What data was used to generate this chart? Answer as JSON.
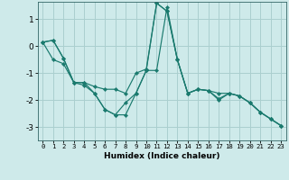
{
  "title": "",
  "xlabel": "Humidex (Indice chaleur)",
  "background_color": "#ceeaea",
  "grid_color": "#aacfcf",
  "line_color": "#1a7a6e",
  "x_ticks": [
    0,
    1,
    2,
    3,
    4,
    5,
    6,
    7,
    8,
    9,
    10,
    11,
    12,
    13,
    14,
    15,
    16,
    17,
    18,
    19,
    20,
    21,
    22,
    23
  ],
  "y_ticks": [
    -3,
    -2,
    -1,
    0,
    1
  ],
  "ylim": [
    -3.5,
    1.65
  ],
  "xlim": [
    -0.5,
    23.5
  ],
  "series": [
    [
      0.15,
      0.22,
      -0.45,
      -1.35,
      -1.35,
      -1.75,
      -2.35,
      -2.55,
      -2.55,
      -1.75,
      -0.9,
      -0.9,
      1.45,
      -0.5,
      -1.75,
      -1.6,
      -1.65,
      -2.0,
      -1.75,
      -1.85,
      -2.1,
      -2.45,
      -2.7,
      -2.95
    ],
    [
      0.15,
      -0.5,
      -0.65,
      -1.35,
      -1.35,
      -1.5,
      -1.6,
      -1.6,
      -1.75,
      -1.0,
      -0.85,
      1.6,
      1.3,
      -0.5,
      -1.75,
      -1.6,
      -1.65,
      -1.75,
      -1.75,
      -1.85,
      -2.1,
      -2.45,
      -2.7,
      -2.95
    ],
    [
      0.15,
      0.22,
      -0.45,
      -1.35,
      -1.45,
      -1.75,
      -2.35,
      -2.55,
      -2.1,
      -1.75,
      -0.9,
      1.6,
      1.3,
      -0.5,
      -1.75,
      -1.6,
      -1.65,
      -1.95,
      -1.75,
      -1.85,
      -2.1,
      -2.45,
      -2.7,
      -2.95
    ]
  ]
}
